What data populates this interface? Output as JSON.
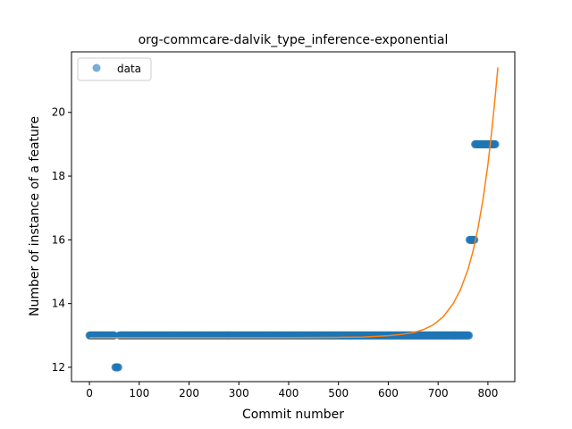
{
  "chart_data": {
    "type": "scatter",
    "title": "org-commcare-dalvik_type_inference-exponential",
    "xlabel": "Commit number",
    "ylabel": "Number of instance of a feature",
    "xlim": [
      -36,
      854
    ],
    "ylim": [
      11.55,
      21.9
    ],
    "xticks": [
      0,
      100,
      200,
      300,
      400,
      500,
      600,
      700,
      800
    ],
    "yticks": [
      12,
      14,
      16,
      18,
      20
    ],
    "legend": {
      "position": "top-left",
      "entries": [
        "data"
      ]
    },
    "grid": false,
    "colors": {
      "points": "#1f77b4",
      "fit": "#ff7f0e"
    },
    "series": [
      {
        "name": "data",
        "kind": "points",
        "segments": [
          {
            "x_start": 0,
            "x_end": 50,
            "y": 13
          },
          {
            "x_start": 52,
            "x_end": 58,
            "y": 12
          },
          {
            "x_start": 60,
            "x_end": 762,
            "y": 13
          },
          {
            "x_start": 763,
            "x_end": 773,
            "y": 16
          },
          {
            "x_start": 774,
            "x_end": 815,
            "y": 19
          }
        ]
      },
      {
        "kind": "line",
        "model": "exponential",
        "x_range": [
          0,
          815
        ],
        "points": [
          [
            0,
            12.93
          ],
          [
            400,
            12.93
          ],
          [
            500,
            12.94
          ],
          [
            550,
            12.95
          ],
          [
            600,
            12.99
          ],
          [
            625,
            13.03
          ],
          [
            650,
            13.09
          ],
          [
            670,
            13.18
          ],
          [
            690,
            13.33
          ],
          [
            710,
            13.58
          ],
          [
            730,
            13.99
          ],
          [
            745,
            14.44
          ],
          [
            760,
            15.07
          ],
          [
            770,
            15.64
          ],
          [
            780,
            16.36
          ],
          [
            790,
            17.25
          ],
          [
            800,
            18.36
          ],
          [
            808,
            19.45
          ],
          [
            815,
            20.55
          ],
          [
            820,
            21.41
          ]
        ]
      }
    ]
  }
}
